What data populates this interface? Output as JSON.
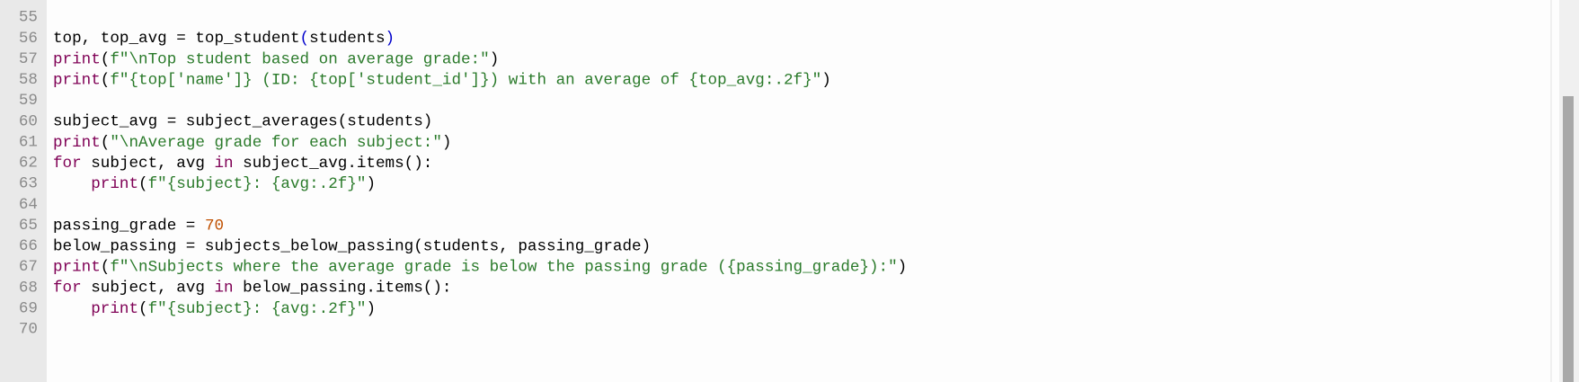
{
  "editor": {
    "lines": [
      {
        "number": "55",
        "tokens": []
      },
      {
        "number": "56",
        "tokens": [
          {
            "text": "top, top_avg = top_student",
            "color": "#000000"
          },
          {
            "text": "(",
            "color": "#0000cc"
          },
          {
            "text": "students",
            "color": "#000000"
          },
          {
            "text": ")",
            "color": "#0000cc"
          }
        ]
      },
      {
        "number": "57",
        "tokens": [
          {
            "text": "print",
            "color": "#7f0055"
          },
          {
            "text": "(",
            "color": "#000000"
          },
          {
            "text": "f\"\\nTop student based on average grade:\"",
            "color": "#2a7a2a"
          },
          {
            "text": ")",
            "color": "#000000"
          }
        ]
      },
      {
        "number": "58",
        "tokens": [
          {
            "text": "print",
            "color": "#7f0055"
          },
          {
            "text": "(",
            "color": "#000000"
          },
          {
            "text": "f\"{top['name']} (ID: {top['student_id']}) with an average of {top_avg:.2f}\"",
            "color": "#2a7a2a"
          },
          {
            "text": ")",
            "color": "#000000"
          }
        ]
      },
      {
        "number": "59",
        "tokens": []
      },
      {
        "number": "60",
        "tokens": [
          {
            "text": "subject_avg = subject_averages(students)",
            "color": "#000000"
          }
        ]
      },
      {
        "number": "61",
        "tokens": [
          {
            "text": "print",
            "color": "#7f0055"
          },
          {
            "text": "(",
            "color": "#000000"
          },
          {
            "text": "\"\\nAverage grade for each subject:\"",
            "color": "#2a7a2a"
          },
          {
            "text": ")",
            "color": "#000000"
          }
        ]
      },
      {
        "number": "62",
        "tokens": [
          {
            "text": "for",
            "color": "#7f0055"
          },
          {
            "text": " subject, avg ",
            "color": "#000000"
          },
          {
            "text": "in",
            "color": "#7f0055"
          },
          {
            "text": " subject_avg.items():",
            "color": "#000000"
          }
        ]
      },
      {
        "number": "63",
        "tokens": [
          {
            "text": "    ",
            "color": "#000000"
          },
          {
            "text": "print",
            "color": "#7f0055"
          },
          {
            "text": "(",
            "color": "#000000"
          },
          {
            "text": "f\"{subject}: {avg:.2f}\"",
            "color": "#2a7a2a"
          },
          {
            "text": ")",
            "color": "#000000"
          }
        ]
      },
      {
        "number": "64",
        "tokens": []
      },
      {
        "number": "65",
        "tokens": [
          {
            "text": "passing_grade = ",
            "color": "#000000"
          },
          {
            "text": "70",
            "color": "#c05000"
          }
        ]
      },
      {
        "number": "66",
        "tokens": [
          {
            "text": "below_passing = subjects_below_passing(students, passing_grade)",
            "color": "#000000"
          }
        ]
      },
      {
        "number": "67",
        "tokens": [
          {
            "text": "print",
            "color": "#7f0055"
          },
          {
            "text": "(",
            "color": "#000000"
          },
          {
            "text": "f\"\\nSubjects where the average grade is below the passing grade ({passing_grade}):\"",
            "color": "#2a7a2a"
          },
          {
            "text": ")",
            "color": "#000000"
          }
        ]
      },
      {
        "number": "68",
        "tokens": [
          {
            "text": "for",
            "color": "#7f0055"
          },
          {
            "text": " subject, avg ",
            "color": "#000000"
          },
          {
            "text": "in",
            "color": "#7f0055"
          },
          {
            "text": " below_passing.items():",
            "color": "#000000"
          }
        ]
      },
      {
        "number": "69",
        "tokens": [
          {
            "text": "    ",
            "color": "#000000"
          },
          {
            "text": "print",
            "color": "#7f0055"
          },
          {
            "text": "(",
            "color": "#000000"
          },
          {
            "text": "f\"{subject}: {avg:.2f}\"",
            "color": "#2a7a2a"
          },
          {
            "text": ")",
            "color": "#000000"
          }
        ]
      },
      {
        "number": "70",
        "tokens": []
      }
    ]
  }
}
